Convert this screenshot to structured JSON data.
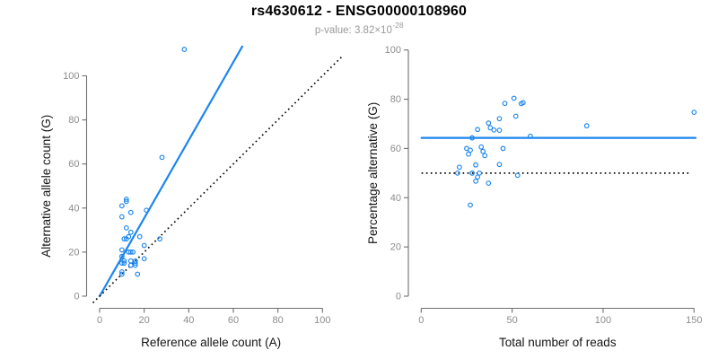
{
  "header": {
    "title": "rs4630612 - ENSG00000108960",
    "p_label": "p-value: ",
    "p_base": "3.82×10",
    "p_exponent": "-28"
  },
  "colors": {
    "accent_blue": "#1C86EE",
    "dotted_line": "#000000",
    "axis_line": "#6F6F6F",
    "tick_label": "#8C8C8C",
    "axis_title": "#141414",
    "subtitle": "#9A9A9A",
    "title": "#000000",
    "background": "#FFFFFF"
  },
  "chart_data": [
    {
      "name": "allele-counts",
      "type": "scatter",
      "xlabel": "Reference allele count (A)",
      "ylabel": "Alternative allele count (G)",
      "xlim": [
        0,
        100
      ],
      "ylim": [
        0,
        112
      ],
      "xticks": [
        0,
        20,
        40,
        60,
        80,
        100
      ],
      "yticks": [
        0,
        20,
        40,
        60,
        80,
        100
      ],
      "grid": false,
      "legend": "none",
      "marker": "open-circle",
      "points": [
        [
          38,
          112
        ],
        [
          28,
          63
        ],
        [
          21,
          39
        ],
        [
          12,
          44
        ],
        [
          12,
          43
        ],
        [
          10,
          41
        ],
        [
          10,
          36
        ],
        [
          14,
          38
        ],
        [
          12,
          31
        ],
        [
          14,
          29
        ],
        [
          13,
          27
        ],
        [
          18,
          27
        ],
        [
          11,
          26
        ],
        [
          12,
          26
        ],
        [
          27,
          26
        ],
        [
          20,
          23
        ],
        [
          10,
          21
        ],
        [
          14,
          20
        ],
        [
          13,
          20
        ],
        [
          15,
          20
        ],
        [
          10,
          18
        ],
        [
          10,
          18
        ],
        [
          11,
          16
        ],
        [
          16,
          16
        ],
        [
          14,
          16
        ],
        [
          16,
          15
        ],
        [
          10,
          15
        ],
        [
          11,
          15
        ],
        [
          20,
          17
        ],
        [
          16,
          14
        ],
        [
          14,
          14
        ],
        [
          14,
          14
        ],
        [
          10,
          11
        ],
        [
          10,
          10
        ],
        [
          17,
          10
        ]
      ],
      "lines": [
        {
          "name": "fit-line",
          "style": "solid",
          "color_key": "accent_blue",
          "from": [
            0,
            0
          ],
          "to": [
            64,
            113.3
          ]
        },
        {
          "name": "identity-line",
          "style": "dotted",
          "color_key": "dotted_line",
          "from": [
            -3,
            -3
          ],
          "to": [
            108.5,
            108.5
          ]
        }
      ]
    },
    {
      "name": "percentage-alternative",
      "type": "scatter",
      "xlabel": "Total number of reads",
      "ylabel": "Percentage alternative (G)",
      "xlim": [
        0,
        150
      ],
      "ylim": [
        0,
        100
      ],
      "xticks": [
        0,
        50,
        100,
        150
      ],
      "yticks": [
        0,
        20,
        40,
        60,
        80,
        100
      ],
      "grid": false,
      "legend": "none",
      "marker": "open-circle",
      "points": [
        [
          150,
          74.7
        ],
        [
          91,
          69.2
        ],
        [
          60,
          65
        ],
        [
          56,
          78.6
        ],
        [
          55,
          78.2
        ],
        [
          51,
          80.4
        ],
        [
          46,
          78.3
        ],
        [
          52,
          73.1
        ],
        [
          43,
          72.1
        ],
        [
          43,
          67.4
        ],
        [
          40,
          67.5
        ],
        [
          45,
          60
        ],
        [
          37,
          70.3
        ],
        [
          38,
          68.4
        ],
        [
          53,
          49.1
        ],
        [
          43,
          53.5
        ],
        [
          31,
          67.7
        ],
        [
          34,
          58.8
        ],
        [
          33,
          60.6
        ],
        [
          35,
          57.1
        ],
        [
          28,
          64.3
        ],
        [
          28,
          64.3
        ],
        [
          27,
          59.3
        ],
        [
          32,
          50
        ],
        [
          30,
          53.3
        ],
        [
          31,
          48.4
        ],
        [
          25,
          60
        ],
        [
          26,
          57.7
        ],
        [
          37,
          45.9
        ],
        [
          30,
          46.7
        ],
        [
          28,
          50
        ],
        [
          28,
          50
        ],
        [
          21,
          52.4
        ],
        [
          20,
          50
        ],
        [
          27,
          37
        ]
      ],
      "lines": [
        {
          "name": "mean-percentage-line",
          "style": "solid",
          "color_key": "accent_blue",
          "from": [
            0.2,
            64.3
          ],
          "to": [
            150.8,
            64.3
          ]
        },
        {
          "name": "fifty-percent-line",
          "style": "dotted",
          "color_key": "dotted_line",
          "from": [
            0.2,
            50
          ],
          "to": [
            148,
            50
          ]
        }
      ]
    }
  ]
}
